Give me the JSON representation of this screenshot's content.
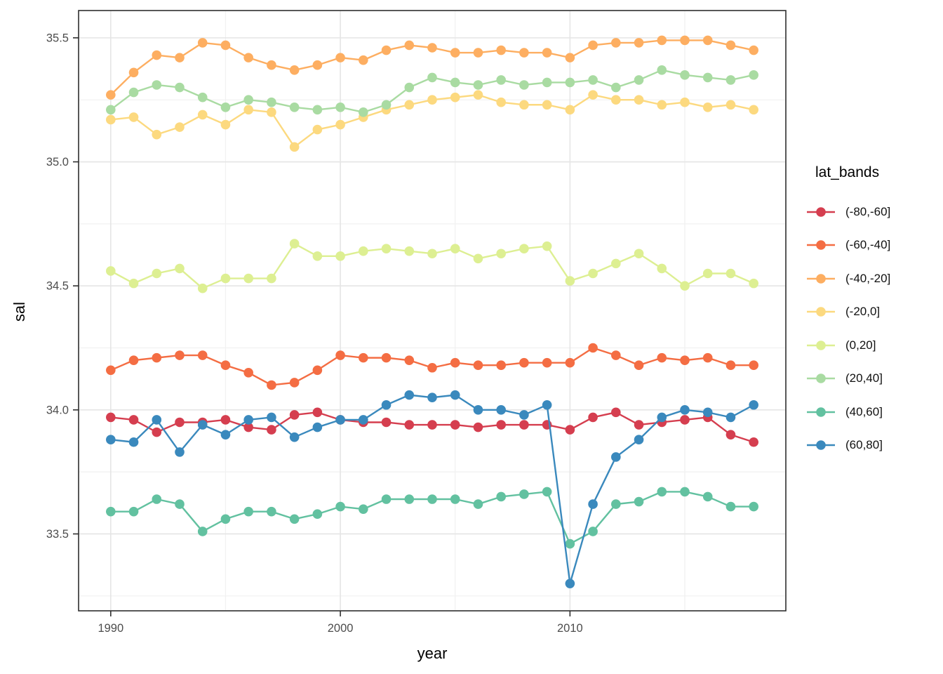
{
  "figure": {
    "background": "#ffffff"
  },
  "panel": {
    "background": "#ffffff",
    "border_color": "#2f2f2f",
    "grid_major_color": "#e5e5e5",
    "grid_minor_color": "#f1f1f1",
    "tick_color": "#2f2f2f",
    "tick_label_color": "#4d4d4d"
  },
  "axes": {
    "x": {
      "label": "year",
      "tick_labels": [
        "1990",
        "2000",
        "2010"
      ],
      "tick_values": [
        1990,
        2000,
        2010
      ],
      "minor_ticks": [
        1995,
        2005,
        2015
      ],
      "lim": [
        1988.6,
        2019.4
      ]
    },
    "y": {
      "label": "sal",
      "tick_labels": [
        "33.5",
        "34.0",
        "34.5",
        "35.0",
        "35.5"
      ],
      "tick_values": [
        33.5,
        34.0,
        34.5,
        35.0,
        35.5
      ],
      "minor_ticks": [
        33.25,
        33.75,
        34.25,
        34.75,
        35.25
      ],
      "lim": [
        33.19,
        35.61
      ]
    }
  },
  "legend": {
    "title": "lat_bands",
    "position": "right"
  },
  "chart_data": {
    "type": "line",
    "title": "",
    "xlabel": "year",
    "ylabel": "sal",
    "grid": true,
    "legend_title": "lat_bands",
    "marker_radius": 6.8,
    "line_width": 2.4,
    "x": [
      1990,
      1991,
      1992,
      1993,
      1994,
      1995,
      1996,
      1997,
      1998,
      1999,
      2000,
      2001,
      2002,
      2003,
      2004,
      2005,
      2006,
      2007,
      2008,
      2009,
      2010,
      2011,
      2012,
      2013,
      2014,
      2015,
      2016,
      2017,
      2018
    ],
    "series": [
      {
        "name": "(-80,-60]",
        "color": "#d53e4f",
        "values": [
          33.97,
          33.96,
          33.91,
          33.95,
          33.95,
          33.96,
          33.93,
          33.92,
          33.98,
          33.99,
          33.96,
          33.95,
          33.95,
          33.94,
          33.94,
          33.94,
          33.93,
          33.94,
          33.94,
          33.94,
          33.92,
          33.97,
          33.99,
          33.94,
          33.95,
          33.96,
          33.97,
          33.9,
          33.87
        ]
      },
      {
        "name": "(-60,-40]",
        "color": "#f46d43",
        "values": [
          34.16,
          34.2,
          34.21,
          34.22,
          34.22,
          34.18,
          34.15,
          34.1,
          34.11,
          34.16,
          34.22,
          34.21,
          34.21,
          34.2,
          34.17,
          34.19,
          34.18,
          34.18,
          34.19,
          34.19,
          34.19,
          34.25,
          34.22,
          34.18,
          34.21,
          34.2,
          34.21,
          34.18,
          34.18
        ]
      },
      {
        "name": "(-40,-20]",
        "color": "#fdae61",
        "values": [
          35.27,
          35.36,
          35.43,
          35.42,
          35.48,
          35.47,
          35.42,
          35.39,
          35.37,
          35.39,
          35.42,
          35.41,
          35.45,
          35.47,
          35.46,
          35.44,
          35.44,
          35.45,
          35.44,
          35.44,
          35.42,
          35.47,
          35.48,
          35.48,
          35.49,
          35.49,
          35.49,
          35.47,
          35.45
        ]
      },
      {
        "name": "(-20,0]",
        "color": "#fcd97f",
        "values": [
          35.17,
          35.18,
          35.11,
          35.14,
          35.19,
          35.15,
          35.21,
          35.2,
          35.06,
          35.13,
          35.15,
          35.18,
          35.21,
          35.23,
          35.25,
          35.26,
          35.27,
          35.24,
          35.23,
          35.23,
          35.21,
          35.27,
          35.25,
          35.25,
          35.23,
          35.24,
          35.22,
          35.23,
          35.21
        ]
      },
      {
        "name": "(0,20]",
        "color": "#ddef92",
        "values": [
          34.56,
          34.51,
          34.55,
          34.57,
          34.49,
          34.53,
          34.53,
          34.53,
          34.67,
          34.62,
          34.62,
          34.64,
          34.65,
          34.64,
          34.63,
          34.65,
          34.61,
          34.63,
          34.65,
          34.66,
          34.52,
          34.55,
          34.59,
          34.63,
          34.57,
          34.5,
          34.55,
          34.55,
          34.51
        ]
      },
      {
        "name": "(20,40]",
        "color": "#a9dba2",
        "values": [
          35.21,
          35.28,
          35.31,
          35.3,
          35.26,
          35.22,
          35.25,
          35.24,
          35.22,
          35.21,
          35.22,
          35.2,
          35.23,
          35.3,
          35.34,
          35.32,
          35.31,
          35.33,
          35.31,
          35.32,
          35.32,
          35.33,
          35.3,
          35.33,
          35.37,
          35.35,
          35.34,
          35.33,
          35.35
        ]
      },
      {
        "name": "(40,60]",
        "color": "#62c1a0",
        "values": [
          33.59,
          33.59,
          33.64,
          33.62,
          33.51,
          33.56,
          33.59,
          33.59,
          33.56,
          33.58,
          33.61,
          33.6,
          33.64,
          33.64,
          33.64,
          33.64,
          33.62,
          33.65,
          33.66,
          33.67,
          33.46,
          33.51,
          33.62,
          33.63,
          33.67,
          33.67,
          33.65,
          33.61,
          33.61
        ]
      },
      {
        "name": "(60,80]",
        "color": "#3a89bd",
        "values": [
          33.88,
          33.87,
          33.96,
          33.83,
          33.94,
          33.9,
          33.96,
          33.97,
          33.89,
          33.93,
          33.96,
          33.96,
          34.02,
          34.06,
          34.05,
          34.06,
          34.0,
          34.0,
          33.98,
          34.02,
          33.3,
          33.62,
          33.81,
          33.88,
          33.97,
          34.0,
          33.99,
          33.97,
          34.02
        ]
      }
    ]
  }
}
